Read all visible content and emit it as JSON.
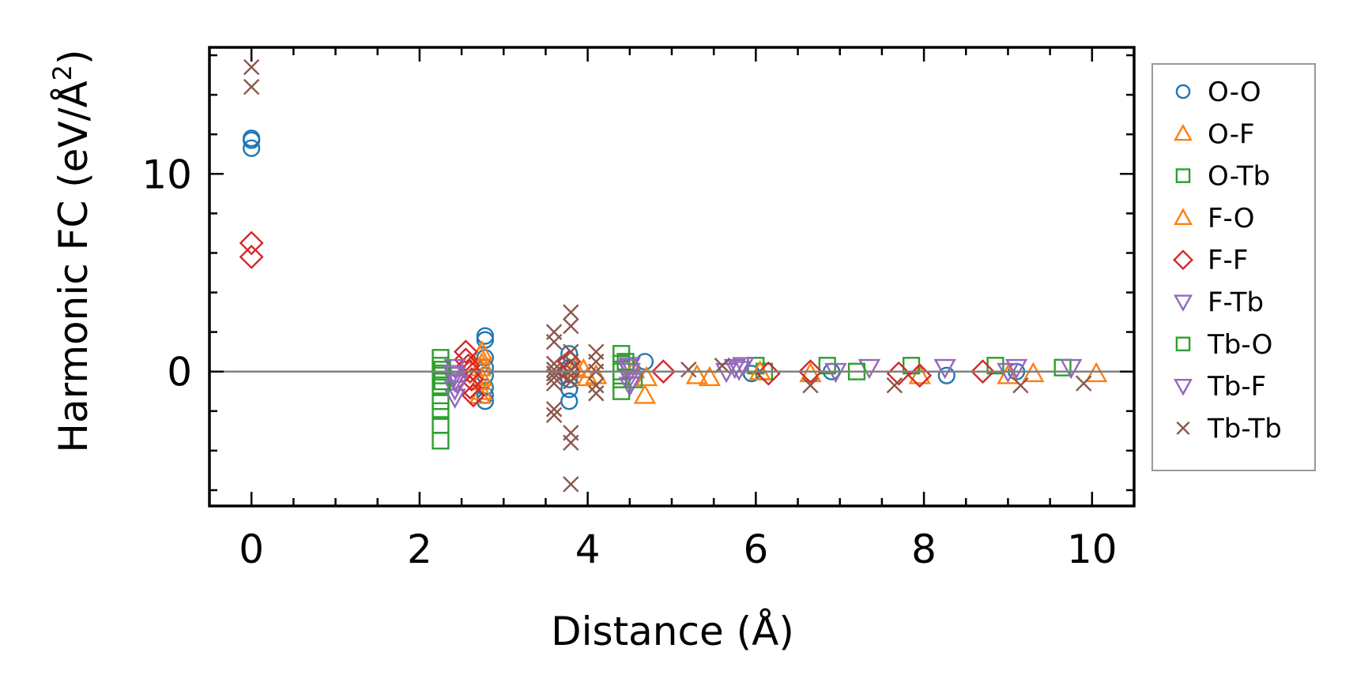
{
  "chart_data": {
    "type": "scatter",
    "xlabel": "Distance (Å)",
    "ylabel_main": "Harmonic FC (eV/Å",
    "ylabel_sup": "2",
    "ylabel_end": ")",
    "xlim": [
      -0.5,
      10.5
    ],
    "ylim": [
      -6.8,
      16.4
    ],
    "xticks": [
      0,
      2,
      4,
      6,
      8,
      10
    ],
    "xtick_labels": [
      "0",
      "2",
      "4",
      "6",
      "8",
      "10"
    ],
    "yticks": [
      0,
      10
    ],
    "ytick_labels": [
      "0",
      "10"
    ],
    "zero_line": 0,
    "grid": false,
    "legend_position": "outside-right",
    "series": [
      {
        "name": "O-O",
        "marker": "circle",
        "color": "#1f77b4",
        "x": [
          0.0,
          0.0,
          0.0,
          2.78,
          2.78,
          2.78,
          2.78,
          2.78,
          2.78,
          2.78,
          2.78,
          3.78,
          3.78,
          3.78,
          3.78,
          3.78,
          4.68,
          5.95,
          6.9,
          8.27,
          9.1
        ],
        "y": [
          11.8,
          11.7,
          11.3,
          1.8,
          1.6,
          0.7,
          0.2,
          -0.2,
          -0.8,
          -1.2,
          -1.5,
          0.9,
          0.2,
          -0.4,
          -0.9,
          -1.5,
          0.5,
          -0.1,
          0.0,
          -0.2,
          0.0
        ]
      },
      {
        "name": "O-F",
        "marker": "triangle-up",
        "color": "#ff7f0e",
        "x": [
          2.74,
          2.74,
          2.74,
          2.74,
          3.95,
          4.0,
          4.68,
          4.7,
          5.3,
          5.45,
          7.95,
          9.0,
          9.3,
          10.05
        ],
        "y": [
          1.0,
          0.4,
          -0.3,
          -1.0,
          0.1,
          -0.3,
          -1.2,
          -0.3,
          -0.2,
          -0.3,
          -0.2,
          -0.2,
          -0.1,
          -0.1
        ]
      },
      {
        "name": "O-Tb",
        "marker": "square",
        "color": "#2ca02c",
        "x": [
          2.25,
          2.25,
          2.25,
          2.25,
          2.25,
          2.25,
          2.25,
          2.25,
          4.4,
          4.4,
          4.4,
          4.4,
          4.4,
          6.0,
          6.1,
          6.85,
          7.85,
          8.85,
          9.65
        ],
        "y": [
          0.7,
          0.3,
          -0.2,
          -0.8,
          -1.5,
          -2.0,
          -2.7,
          -3.5,
          0.9,
          0.4,
          0.0,
          -0.4,
          -1.0,
          0.3,
          0.0,
          0.3,
          0.3,
          0.3,
          0.2
        ]
      },
      {
        "name": "F-O",
        "marker": "triangle-up",
        "color": "#ff7f0e",
        "x": [
          2.72,
          2.72,
          2.72,
          2.72,
          3.85,
          4.1,
          4.55,
          6.05,
          6.65
        ],
        "y": [
          0.8,
          0.2,
          -0.5,
          -1.2,
          0.2,
          -0.2,
          0.1,
          0.0,
          -0.1
        ]
      },
      {
        "name": "F-F",
        "marker": "diamond",
        "color": "#d62728",
        "x": [
          0.0,
          0.0,
          2.55,
          2.55,
          2.58,
          2.6,
          2.62,
          2.6,
          2.64,
          3.78,
          3.78,
          4.9,
          6.15,
          6.65,
          7.7,
          7.95,
          8.7
        ],
        "y": [
          6.5,
          5.8,
          1.0,
          0.6,
          0.3,
          0.0,
          -0.4,
          -0.8,
          -1.2,
          0.5,
          0.0,
          0.0,
          -0.1,
          0.0,
          -0.1,
          -0.2,
          0.0
        ]
      },
      {
        "name": "F-Tb",
        "marker": "triangle-down",
        "color": "#9467bd",
        "x": [
          2.42,
          2.42,
          2.42,
          2.42,
          2.42,
          4.5,
          4.5,
          4.5,
          4.5,
          5.65,
          5.75,
          5.85,
          6.95,
          7.35,
          8.25,
          9.1,
          9.75
        ],
        "y": [
          0.2,
          -0.2,
          -0.5,
          -0.9,
          -1.3,
          0.3,
          0.0,
          -0.3,
          -0.7,
          0.0,
          0.2,
          0.3,
          0.0,
          0.2,
          0.2,
          0.2,
          0.2
        ]
      },
      {
        "name": "Tb-O",
        "marker": "square",
        "color": "#2ca02c",
        "x": [
          2.27,
          2.27,
          4.45,
          4.55,
          7.2
        ],
        "y": [
          0.1,
          -0.5,
          0.5,
          -0.4,
          0.0
        ]
      },
      {
        "name": "Tb-F",
        "marker": "triangle-down",
        "color": "#9467bd",
        "x": [
          2.4,
          2.45,
          4.48,
          4.52,
          5.8,
          9.0
        ],
        "y": [
          -0.1,
          -0.6,
          0.2,
          -0.5,
          0.1,
          0.0
        ]
      },
      {
        "name": "Tb-Tb",
        "marker": "x",
        "color": "#8c564b",
        "x": [
          0.0,
          0.0,
          3.6,
          3.6,
          3.6,
          3.6,
          3.6,
          3.6,
          3.6,
          3.6,
          3.6,
          3.8,
          3.8,
          3.8,
          3.8,
          3.8,
          3.8,
          3.8,
          3.8,
          3.8,
          3.8,
          4.1,
          4.1,
          4.1,
          4.1,
          4.1,
          5.2,
          5.6,
          6.65,
          7.65,
          9.15,
          9.9
        ],
        "y": [
          15.4,
          14.4,
          2.0,
          1.5,
          0.4,
          0.1,
          -0.1,
          -0.3,
          -0.6,
          -1.9,
          -2.2,
          3.0,
          2.3,
          1.0,
          0.5,
          0.1,
          -0.2,
          -0.5,
          -3.1,
          -3.6,
          -5.7,
          1.0,
          0.5,
          0.0,
          -0.7,
          -1.1,
          0.1,
          0.3,
          -0.7,
          -0.7,
          -0.7,
          -0.6
        ]
      }
    ]
  }
}
